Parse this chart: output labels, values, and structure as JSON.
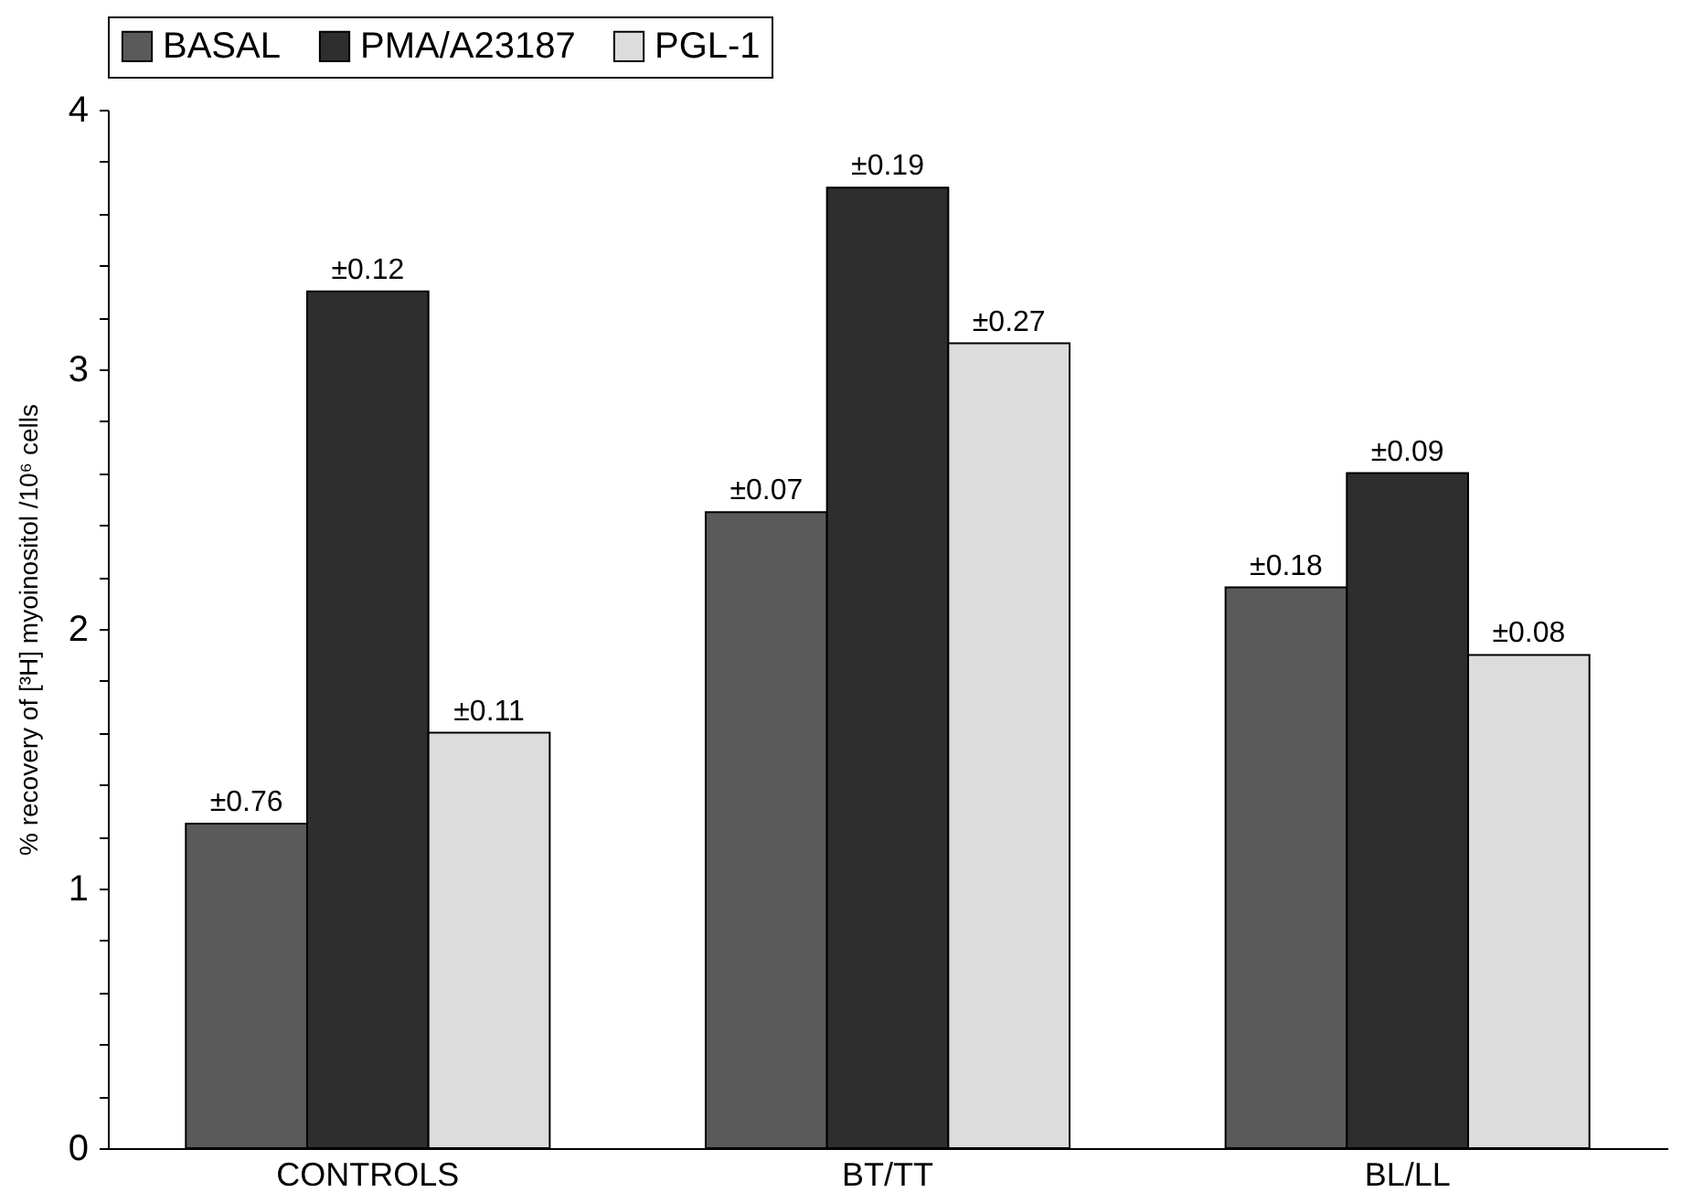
{
  "chart_data": {
    "type": "bar",
    "ylabel": "% recovery of [³H] myoinositol /10⁶ cells",
    "categories": [
      "CONTROLS",
      "BT/TT",
      "BL/LL"
    ],
    "series": [
      {
        "name": "BASAL",
        "color": "#5a5a5a",
        "values": [
          1.25,
          2.45,
          2.16
        ]
      },
      {
        "name": "PMA/A23187",
        "color": "#2e2e2e",
        "values": [
          3.3,
          3.7,
          2.6
        ]
      },
      {
        "name": "PGL-1",
        "color": "#dcdcdc",
        "values": [
          1.6,
          3.1,
          1.9
        ]
      }
    ],
    "annotations": [
      "±0.76",
      "±0.12",
      "±0.11",
      "±0.07",
      "±0.19",
      "±0.27",
      "±0.18",
      "±0.09",
      "±0.08"
    ],
    "ylim": [
      0,
      4
    ],
    "yticks": [
      0,
      {
        "value": 0.2,
        "label": null
      },
      {
        "value": 0.4,
        "label": null
      },
      {
        "value": 0.6,
        "label": null
      },
      {
        "value": 0.8,
        "label": null
      },
      1,
      {
        "value": 1.2,
        "label": null
      },
      {
        "value": 1.4,
        "label": null
      },
      {
        "value": 1.6,
        "label": null
      },
      {
        "value": 1.8,
        "label": null
      },
      2,
      {
        "value": 2.2,
        "label": null
      },
      {
        "value": 2.4,
        "label": null
      },
      {
        "value": 2.6,
        "label": null
      },
      {
        "value": 2.8,
        "label": null
      },
      3,
      {
        "value": 3.2,
        "label": null
      },
      {
        "value": 3.4,
        "label": null
      },
      {
        "value": 3.6,
        "label": null
      },
      {
        "value": 3.8,
        "label": null
      },
      4
    ],
    "grid": false,
    "legend": "top"
  }
}
